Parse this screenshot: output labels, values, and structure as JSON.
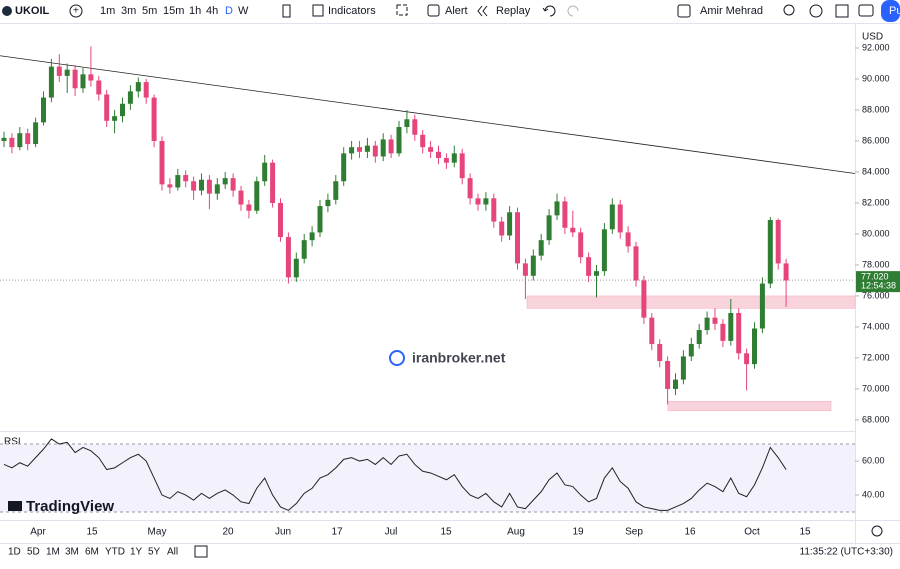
{
  "toolbar": {
    "symbol": "UKOIL",
    "intervals": [
      "1m",
      "3m",
      "5m",
      "15m",
      "1h",
      "4h",
      "D",
      "W"
    ],
    "indicators": "Indicators",
    "alert": "Alert",
    "replay": "Replay",
    "user": "Amir Mehrad",
    "publish": "Pu"
  },
  "chart_data": {
    "type": "candlestick",
    "currency": "USD",
    "up_color": "#2f7d32",
    "down_color": "#e5457b",
    "x_labels": [
      "Apr",
      "15",
      "May",
      "20",
      "Jun",
      "17",
      "Jul",
      "15",
      "Aug",
      "19",
      "Sep",
      "16",
      "Oct",
      "15"
    ],
    "ylim": [
      67.35,
      93.16
    ],
    "yticks": [
      {
        "value": 68,
        "label": "68.000"
      },
      {
        "value": 70,
        "label": "70.000"
      },
      {
        "value": 72,
        "label": "72.000"
      },
      {
        "value": 74,
        "label": "74.000"
      },
      {
        "value": 76,
        "label": "76.000"
      },
      {
        "value": 78,
        "label": "78.000"
      },
      {
        "value": 80,
        "label": "80.000"
      },
      {
        "value": 82,
        "label": "82.000"
      },
      {
        "value": 84,
        "label": "84.000"
      },
      {
        "value": 86,
        "label": "86.000"
      },
      {
        "value": 88,
        "label": "88.000"
      },
      {
        "value": 90,
        "label": "90.000"
      },
      {
        "value": 92,
        "label": "92.000"
      }
    ],
    "last_price": {
      "value": 77.02,
      "label": "77.020"
    },
    "countdown": "12:54:38",
    "trendline": [
      91.5,
      83.9
    ],
    "zones": [
      [
        76.0,
        75.2
      ],
      [
        69.2,
        68.6
      ]
    ],
    "watermark": "iranbroker.net",
    "candles": [
      [
        86.0,
        86.6,
        85.6,
        86.2
      ],
      [
        86.2,
        86.5,
        85.2,
        85.6
      ],
      [
        85.6,
        86.9,
        85.4,
        86.5
      ],
      [
        86.5,
        86.8,
        85.4,
        85.8
      ],
      [
        85.8,
        87.5,
        85.6,
        87.2
      ],
      [
        87.2,
        89.2,
        87.0,
        88.8
      ],
      [
        88.8,
        91.3,
        88.5,
        90.8
      ],
      [
        90.8,
        91.6,
        89.8,
        90.2
      ],
      [
        90.2,
        91.0,
        89.1,
        90.6
      ],
      [
        90.6,
        90.9,
        88.9,
        89.4
      ],
      [
        89.4,
        90.7,
        89.1,
        90.3
      ],
      [
        90.3,
        92.1,
        89.5,
        89.9
      ],
      [
        89.9,
        90.2,
        88.6,
        89.0
      ],
      [
        89.0,
        89.3,
        86.9,
        87.3
      ],
      [
        87.3,
        88.0,
        86.5,
        87.6
      ],
      [
        87.6,
        88.8,
        87.2,
        88.4
      ],
      [
        88.4,
        89.6,
        88.0,
        89.2
      ],
      [
        89.2,
        90.1,
        88.8,
        89.8
      ],
      [
        89.8,
        90.0,
        88.4,
        88.8
      ],
      [
        88.8,
        89.0,
        85.6,
        86.0
      ],
      [
        86.0,
        86.3,
        82.8,
        83.2
      ],
      [
        83.2,
        83.6,
        82.6,
        83.0
      ],
      [
        83.0,
        84.2,
        82.8,
        83.8
      ],
      [
        83.8,
        84.1,
        83.0,
        83.4
      ],
      [
        83.4,
        83.7,
        82.2,
        82.8
      ],
      [
        82.8,
        83.9,
        82.5,
        83.5
      ],
      [
        83.5,
        83.8,
        81.6,
        82.6
      ],
      [
        82.6,
        83.6,
        82.2,
        83.2
      ],
      [
        83.2,
        84.0,
        82.9,
        83.6
      ],
      [
        83.6,
        83.9,
        82.4,
        82.8
      ],
      [
        82.8,
        83.1,
        81.5,
        81.9
      ],
      [
        81.9,
        82.2,
        81.0,
        81.5
      ],
      [
        81.5,
        83.7,
        81.3,
        83.4
      ],
      [
        83.4,
        85.1,
        83.1,
        84.6
      ],
      [
        84.6,
        84.8,
        81.7,
        82.0
      ],
      [
        82.0,
        82.3,
        79.5,
        79.8
      ],
      [
        79.8,
        80.1,
        76.8,
        77.2
      ],
      [
        77.2,
        78.8,
        76.9,
        78.4
      ],
      [
        78.4,
        80.0,
        78.1,
        79.6
      ],
      [
        79.6,
        80.5,
        79.2,
        80.1
      ],
      [
        80.1,
        82.2,
        79.8,
        81.8
      ],
      [
        81.8,
        82.6,
        81.4,
        82.2
      ],
      [
        82.2,
        83.8,
        81.9,
        83.4
      ],
      [
        83.4,
        85.6,
        83.1,
        85.2
      ],
      [
        85.2,
        86.0,
        84.8,
        85.6
      ],
      [
        85.6,
        86.0,
        84.9,
        85.3
      ],
      [
        85.3,
        86.2,
        84.9,
        85.7
      ],
      [
        85.7,
        86.0,
        84.6,
        85.0
      ],
      [
        85.0,
        86.5,
        84.7,
        86.1
      ],
      [
        86.1,
        86.4,
        84.9,
        85.2
      ],
      [
        85.2,
        87.3,
        85.0,
        86.9
      ],
      [
        86.9,
        88.0,
        86.5,
        87.4
      ],
      [
        87.4,
        87.7,
        86.0,
        86.4
      ],
      [
        86.4,
        86.7,
        85.2,
        85.6
      ],
      [
        85.6,
        86.0,
        84.9,
        85.3
      ],
      [
        85.3,
        85.7,
        84.5,
        84.9
      ],
      [
        84.9,
        85.2,
        84.2,
        84.6
      ],
      [
        84.6,
        85.7,
        84.3,
        85.2
      ],
      [
        85.2,
        85.5,
        83.2,
        83.6
      ],
      [
        83.6,
        83.9,
        81.9,
        82.3
      ],
      [
        82.3,
        82.6,
        81.5,
        81.9
      ],
      [
        81.9,
        82.7,
        81.5,
        82.3
      ],
      [
        82.3,
        82.6,
        80.4,
        80.8
      ],
      [
        80.8,
        81.1,
        79.5,
        79.9
      ],
      [
        79.9,
        81.8,
        79.6,
        81.4
      ],
      [
        81.4,
        81.7,
        77.7,
        78.1
      ],
      [
        78.1,
        78.4,
        75.8,
        77.3
      ],
      [
        77.3,
        79.0,
        77.0,
        78.6
      ],
      [
        78.6,
        80.0,
        78.3,
        79.6
      ],
      [
        79.6,
        81.6,
        79.3,
        81.2
      ],
      [
        81.2,
        82.6,
        80.9,
        82.1
      ],
      [
        82.1,
        82.4,
        80.0,
        80.4
      ],
      [
        80.4,
        81.5,
        79.8,
        80.1
      ],
      [
        80.1,
        80.4,
        78.1,
        78.5
      ],
      [
        78.5,
        78.8,
        76.9,
        77.3
      ],
      [
        77.3,
        78.0,
        75.9,
        77.6
      ],
      [
        77.6,
        80.7,
        77.3,
        80.3
      ],
      [
        80.3,
        82.3,
        80.0,
        81.9
      ],
      [
        81.9,
        82.2,
        79.7,
        80.1
      ],
      [
        80.1,
        80.5,
        78.8,
        79.2
      ],
      [
        79.2,
        79.5,
        76.6,
        77.0
      ],
      [
        77.0,
        77.3,
        74.2,
        74.6
      ],
      [
        74.6,
        74.9,
        72.5,
        72.9
      ],
      [
        72.9,
        73.2,
        71.4,
        71.8
      ],
      [
        71.8,
        72.1,
        69.0,
        70.0
      ],
      [
        70.0,
        71.0,
        69.6,
        70.6
      ],
      [
        70.6,
        72.5,
        70.3,
        72.1
      ],
      [
        72.1,
        73.3,
        71.8,
        72.9
      ],
      [
        72.9,
        74.2,
        72.6,
        73.8
      ],
      [
        73.8,
        75.0,
        73.5,
        74.6
      ],
      [
        74.6,
        75.2,
        73.8,
        74.2
      ],
      [
        74.2,
        74.5,
        72.7,
        73.1
      ],
      [
        73.1,
        75.8,
        72.8,
        74.9
      ],
      [
        74.9,
        75.2,
        71.9,
        72.3
      ],
      [
        72.3,
        72.6,
        69.9,
        71.6
      ],
      [
        71.6,
        74.3,
        71.3,
        73.9
      ],
      [
        73.9,
        77.2,
        73.6,
        76.8
      ],
      [
        76.8,
        81.1,
        76.5,
        80.9
      ],
      [
        80.9,
        81.0,
        77.7,
        78.1
      ],
      [
        78.1,
        78.4,
        75.3,
        77.0
      ]
    ],
    "rsi": {
      "name": "RSI",
      "color": "#222222",
      "ylim": [
        26.5,
        76.5
      ],
      "bands": [
        70,
        30
      ],
      "yticks": [
        {
          "value": 60,
          "label": "60.00"
        },
        {
          "value": 40,
          "label": "40.00"
        }
      ],
      "values": [
        58,
        56,
        59,
        57,
        62,
        67,
        73,
        70,
        71,
        65,
        68,
        66,
        62,
        55,
        56,
        59,
        62,
        64,
        60,
        50,
        40,
        38,
        42,
        40,
        37,
        41,
        38,
        41,
        43,
        40,
        36,
        35,
        44,
        50,
        40,
        33,
        31,
        35,
        41,
        44,
        50,
        52,
        56,
        61,
        62,
        60,
        61,
        58,
        62,
        58,
        63,
        64,
        58,
        54,
        53,
        51,
        49,
        52,
        45,
        40,
        38,
        41,
        36,
        33,
        41,
        33,
        32,
        37,
        42,
        49,
        53,
        46,
        45,
        40,
        36,
        38,
        50,
        56,
        48,
        44,
        36,
        33,
        32,
        31,
        31,
        33,
        35,
        38,
        43,
        47,
        45,
        42,
        50,
        41,
        39,
        46,
        56,
        68,
        62,
        55
      ]
    }
  },
  "bottom": {
    "ranges": [
      "1D",
      "5D",
      "1M",
      "3M",
      "6M",
      "YTD",
      "1Y",
      "5Y",
      "All"
    ],
    "clock": "11:35:22 (UTC+3:30)"
  },
  "brand": "TradingView"
}
